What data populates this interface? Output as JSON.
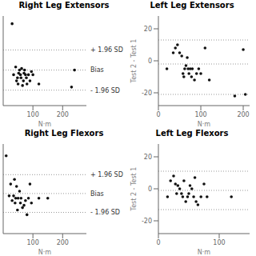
{
  "chart_data": [
    {
      "type": "scatter",
      "title": "Right Leg Extensors",
      "x_label": "N·m",
      "x": [
        30,
        35,
        42,
        45,
        48,
        50,
        52,
        55,
        58,
        60,
        62,
        65,
        68,
        70,
        72,
        75,
        78,
        80,
        85,
        90,
        95,
        100,
        120,
        230,
        240
      ],
      "values": [
        25,
        -8,
        -3,
        -12,
        -10,
        -14,
        -7,
        -5,
        -8,
        -10,
        -4,
        -15,
        -12,
        -7,
        -5,
        -8,
        -10,
        -14,
        -8,
        -12,
        -6,
        -8,
        -14,
        -16,
        -5
      ],
      "color": "#111111",
      "xlim": [
        0,
        280
      ],
      "xticks": [
        100,
        200
      ],
      "ylim": [
        -28,
        30
      ],
      "tick_labels": "x",
      "reference_lines": {
        "values": [
          8,
          -5,
          -18
        ],
        "labels": [
          "+ 1.96 SD",
          "Bias",
          "- 1.96 SD"
        ],
        "color": "#999999",
        "line_style": "dotted"
      }
    },
    {
      "type": "scatter",
      "title": "Left Leg Extensors",
      "x_label": "N·m",
      "y_label": "Test 2 - Test 1",
      "x": [
        20,
        35,
        40,
        45,
        50,
        55,
        58,
        60,
        62,
        65,
        68,
        70,
        72,
        75,
        78,
        80,
        85,
        90,
        95,
        100,
        110,
        120,
        180,
        200,
        205
      ],
      "values": [
        -5,
        5,
        8,
        10,
        5,
        3,
        -8,
        -10,
        -5,
        -3,
        2,
        -5,
        -8,
        -5,
        -10,
        -5,
        -12,
        -8,
        -5,
        -8,
        8,
        -12,
        -22,
        7,
        -21
      ],
      "color": "#111111",
      "xlim": [
        0,
        215
      ],
      "xticks": [
        0,
        100,
        200
      ],
      "ylim": [
        -28,
        28
      ],
      "yticks": [
        -20,
        0,
        20
      ],
      "reference_lines": {
        "values": [
          13,
          -2,
          -21
        ],
        "color": "#999999",
        "line_style": "dotted"
      }
    },
    {
      "type": "scatter",
      "title": "Right Leg Flexors",
      "x_label": "N·m",
      "x": [
        10,
        20,
        25,
        30,
        35,
        38,
        40,
        42,
        45,
        48,
        50,
        55,
        58,
        60,
        65,
        70,
        75,
        80,
        85,
        90,
        95,
        120,
        150
      ],
      "values": [
        15,
        -2,
        3,
        -4,
        -2,
        5,
        -5,
        -3,
        2,
        -8,
        -3,
        0,
        -5,
        -3,
        -7,
        -6,
        -4,
        -10,
        -3,
        3,
        -5,
        -3,
        -3
      ],
      "color": "#111111",
      "xlim": [
        0,
        280
      ],
      "xticks": [
        100,
        200
      ],
      "ylim": [
        -18,
        20
      ],
      "tick_labels": "x",
      "reference_lines": {
        "values": [
          7,
          -1,
          -9
        ],
        "labels": [
          "+ 1.96 SD",
          "Bias",
          "- 1.96 SD"
        ],
        "color": "#999999",
        "line_style": "dotted"
      }
    },
    {
      "type": "scatter",
      "title": "Left Leg Flexors",
      "x_label": "N·m",
      "y_label": "Test 2 - Test 1",
      "x": [
        15,
        20,
        25,
        28,
        30,
        32,
        35,
        38,
        40,
        42,
        45,
        48,
        50,
        52,
        55,
        58,
        60,
        62,
        65,
        70,
        75,
        80,
        120
      ],
      "values": [
        -5,
        5,
        8,
        3,
        -3,
        2,
        0,
        -3,
        -5,
        5,
        -8,
        -5,
        -3,
        2,
        0,
        -5,
        7,
        -8,
        -10,
        -5,
        3,
        -5,
        -5
      ],
      "color": "#111111",
      "xlim": [
        0,
        150
      ],
      "xticks": [
        0,
        100
      ],
      "ylim": [
        -28,
        28
      ],
      "yticks": [
        -20,
        0,
        20
      ],
      "reference_lines": {
        "values": [
          11,
          -1,
          -13
        ],
        "color": "#999999",
        "line_style": "dotted"
      }
    }
  ]
}
